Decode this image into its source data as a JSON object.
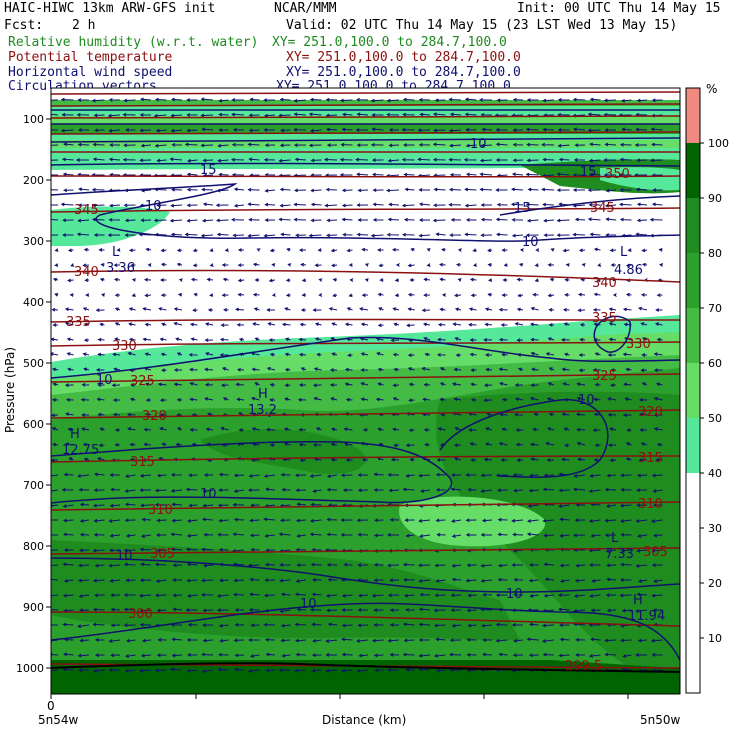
{
  "header": {
    "title_left": "HAIC-HIWC 13km ARW-GFS init",
    "org": "NCAR/MMM",
    "init": "Init: 00 UTC Thu 14 May 15",
    "fcst_label": "Fcst:",
    "fcst_value": "2 h",
    "valid": "Valid: 02 UTC Thu 14 May 15 (23 LST Wed 13 May 15)"
  },
  "fields": [
    {
      "name": "Relative humidity (w.r.t. water)",
      "xy": "XY= 251.0,100.0 to 284.7,100.0",
      "color": "#1f8a1f"
    },
    {
      "name": "Potential temperature",
      "xy": "XY= 251.0,100.0 to 284.7,100.0",
      "color": "#8b1010"
    },
    {
      "name": "Horizontal wind speed",
      "xy": "XY= 251.0,100.0 to 284.7,100.0",
      "color": "#101070"
    },
    {
      "name": "Circulation vectors",
      "xy": "XY= 251.0,100.0 to 284.7,100.0",
      "color": "#101070"
    }
  ],
  "axes": {
    "ylabel": "Pressure (hPa)",
    "yticks": [
      "100",
      "200",
      "300",
      "400",
      "500",
      "600",
      "700",
      "800",
      "900",
      "1000"
    ],
    "xlabel": "Distance (km)",
    "x_origin": "0",
    "left_end": "5n54w",
    "right_end": "5n50w"
  },
  "colorbar": {
    "unit": "%",
    "labels": [
      "100",
      "90",
      "80",
      "70",
      "60",
      "50",
      "40",
      "30",
      "20",
      "10"
    ],
    "colors": [
      "#f08a80",
      "#006400",
      "#1e8c1e",
      "#2ca02c",
      "#44bb44",
      "#66dd66",
      "#55e89a",
      "#ffffff",
      "#ffffff",
      "#ffffff",
      "#ffffff"
    ]
  },
  "theta_labels": [
    "345",
    "340",
    "335",
    "330",
    "325",
    "320",
    "315",
    "310",
    "305",
    "300",
    "299.5",
    "350",
    "345",
    "340",
    "335",
    "330",
    "325",
    "320",
    "315",
    "310",
    "305"
  ],
  "wind_labels": [
    "15",
    "10",
    "10",
    "15",
    "10",
    "10",
    "10",
    "10",
    "10",
    "10",
    "10",
    "15"
  ],
  "extrema": [
    {
      "kind": "L",
      "value": "3.36"
    },
    {
      "kind": "L",
      "value": "4.86"
    },
    {
      "kind": "H",
      "value": "13.2"
    },
    {
      "kind": "H",
      "value": "12.75"
    },
    {
      "kind": "L",
      "value": "7.33"
    },
    {
      "kind": "H",
      "value": "11.94"
    }
  ]
}
